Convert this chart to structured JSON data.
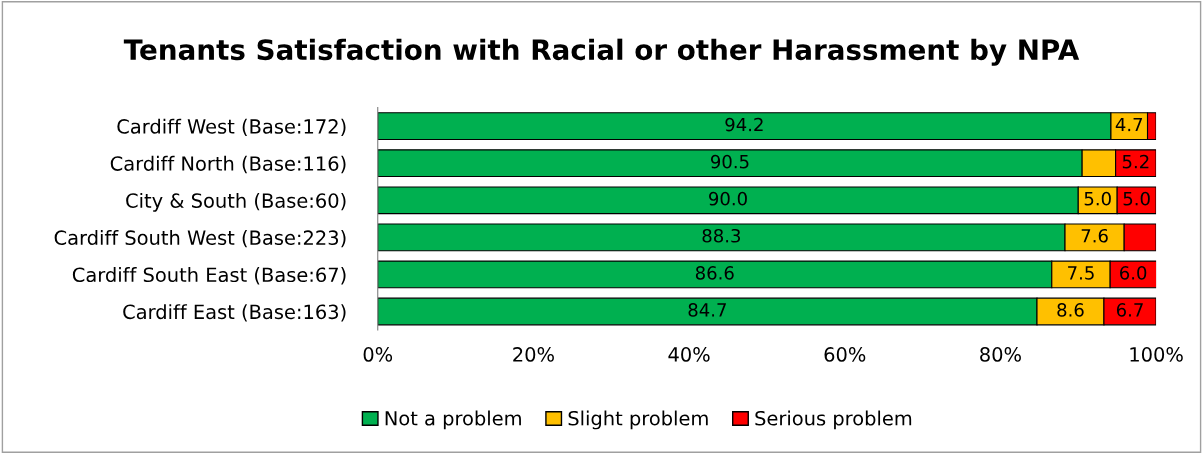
{
  "chart_data": {
    "type": "bar",
    "orientation": "horizontal",
    "stacked": true,
    "title": "Tenants Satisfaction with Racial or other Harassment by NPA",
    "categories": [
      "Cardiff West (Base:172)",
      "Cardiff North (Base:116)",
      "City & South (Base:60)",
      "Cardiff South West (Base:223)",
      "Cardiff South East (Base:67)",
      "Cardiff East (Base:163)"
    ],
    "series": [
      {
        "name": "Not a problem",
        "color": "#00b050",
        "values": [
          94.2,
          90.5,
          90.0,
          88.3,
          86.6,
          84.7
        ],
        "value_labels": [
          "94.2",
          "90.5",
          "90.0",
          "88.3",
          "86.6",
          "84.7"
        ]
      },
      {
        "name": "Slight problem",
        "color": "#ffc000",
        "values": [
          4.7,
          4.3,
          5.0,
          7.6,
          7.5,
          8.6
        ],
        "value_labels": [
          "4.7",
          null,
          "5.0",
          "7.6",
          "7.5",
          "8.6"
        ]
      },
      {
        "name": "Serious problem",
        "color": "#ff0000",
        "values": [
          1.1,
          5.2,
          5.0,
          4.1,
          6.0,
          6.7
        ],
        "value_labels": [
          null,
          "5.2",
          "5.0",
          null,
          "6.0",
          "6.7"
        ]
      }
    ],
    "xlim": [
      0,
      100
    ],
    "xticks": [
      {
        "value": 0,
        "label": "0%"
      },
      {
        "value": 20,
        "label": "20%"
      },
      {
        "value": 40,
        "label": "40%"
      },
      {
        "value": 60,
        "label": "60%"
      },
      {
        "value": 80,
        "label": "80%"
      },
      {
        "value": 100,
        "label": "100%"
      }
    ],
    "grid": false,
    "legend": "bottom"
  }
}
